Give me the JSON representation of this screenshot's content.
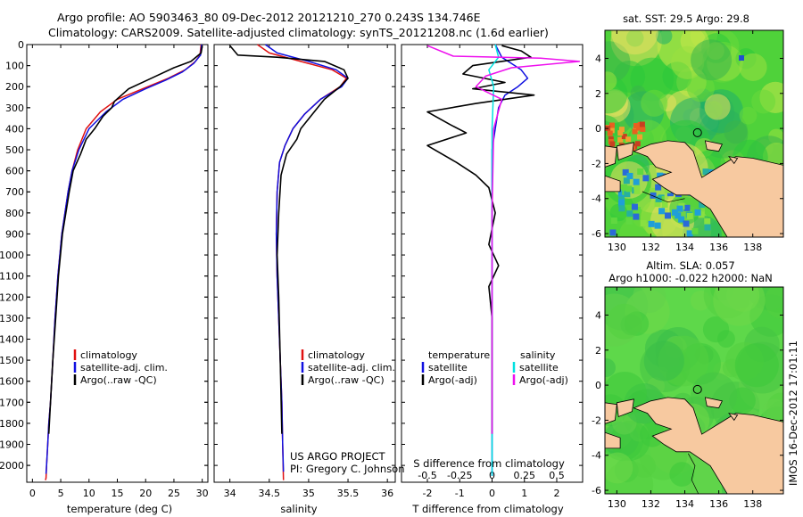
{
  "header": {
    "title_line1": "Argo profile: AO 5903463_80 09-Dec-2012 20121210_270 0.243S 134.746E",
    "title_line2": "Climatology: CARS2009. Satellite-adjusted climatology: synTS_20121208.nc (1.6d earlier)"
  },
  "colors": {
    "climatology": "#e01010",
    "satellite": "#1010e0",
    "argo": "#000000",
    "sal_sat": "#00e0e0",
    "sal_argo": "#ee10ee",
    "land": "#f7c9a0",
    "ocean_green": "#3bd43b"
  },
  "chart_data": [
    {
      "type": "line",
      "panel": "temperature",
      "xlabel": "temperature (deg C)",
      "ylabel": "",
      "xlim": [
        -1,
        31
      ],
      "ylim": [
        2080,
        0
      ],
      "xticks": [
        0,
        5,
        10,
        15,
        20,
        25,
        30
      ],
      "yticks": [
        0,
        100,
        200,
        300,
        400,
        500,
        600,
        700,
        800,
        900,
        1000,
        1100,
        1200,
        1300,
        1400,
        1500,
        1600,
        1700,
        1800,
        1900,
        2000
      ],
      "legend": [
        "climatology",
        "satellite-adj. clim.",
        "Argo(..raw -QC)"
      ],
      "series": [
        {
          "name": "climatology",
          "color": "#e01010",
          "x": [
            29.8,
            29.6,
            28.8,
            27,
            24,
            19.5,
            15,
            12,
            9.5,
            8,
            7,
            6.3,
            5.2,
            4.5,
            4,
            3.6,
            3.2,
            2.9,
            2.7,
            2.5,
            2.4,
            2.3
          ],
          "y": [
            0,
            50,
            80,
            120,
            160,
            210,
            260,
            320,
            400,
            500,
            600,
            700,
            900,
            1100,
            1300,
            1500,
            1700,
            1800,
            1900,
            2000,
            2060,
            2070
          ]
        },
        {
          "name": "satellite-adj. clim.",
          "color": "#1010e0",
          "x": [
            29.9,
            29.7,
            28.5,
            26.5,
            23.5,
            20,
            16,
            13,
            10,
            8.2,
            7,
            6.3,
            5.2,
            4.5,
            4,
            3.6,
            3.2,
            2.9,
            2.7,
            2.5,
            2.4
          ],
          "y": [
            0,
            50,
            90,
            130,
            170,
            210,
            260,
            320,
            400,
            500,
            600,
            700,
            900,
            1100,
            1300,
            1500,
            1700,
            1800,
            1900,
            2000,
            2040
          ]
        },
        {
          "name": "Argo(..raw -QC)",
          "color": "#000000",
          "x": [
            30,
            29.8,
            28,
            25,
            21,
            17,
            14.5,
            14,
            12.5,
            11,
            9.5,
            8.5,
            7.2,
            6.5,
            5.3,
            4.6,
            4.1,
            3.6,
            3.2,
            2.9
          ],
          "y": [
            5,
            40,
            80,
            110,
            160,
            210,
            270,
            300,
            340,
            400,
            450,
            520,
            600,
            700,
            900,
            1100,
            1300,
            1500,
            1700,
            1850
          ]
        }
      ]
    },
    {
      "type": "line",
      "panel": "salinity",
      "xlabel": "salinity",
      "xlim": [
        33.8,
        36.1
      ],
      "ylim": [
        2080,
        0
      ],
      "xticks": [
        34,
        34.5,
        35,
        35.5,
        36
      ],
      "xticklabels": [
        "34",
        "34.5",
        "35",
        "35.5",
        "36"
      ],
      "legend": [
        "climatology",
        "satellite-adj. clim.",
        "Argo(..raw -QC)"
      ],
      "annotation": [
        "US ARGO PROJECT",
        "PI: Gregory C. Johnson"
      ],
      "series": [
        {
          "name": "climatology",
          "color": "#e01010",
          "x": [
            34.35,
            34.5,
            34.9,
            35.3,
            35.48,
            35.4,
            35.15,
            34.95,
            34.8,
            34.7,
            34.63,
            34.6,
            34.59,
            34.6,
            34.62,
            34.64,
            34.66,
            34.67,
            34.68
          ],
          "y": [
            0,
            40,
            80,
            120,
            160,
            200,
            260,
            330,
            400,
            480,
            560,
            700,
            900,
            1100,
            1300,
            1500,
            1700,
            1900,
            2070
          ]
        },
        {
          "name": "satellite-adj. clim.",
          "color": "#1010e0",
          "x": [
            34.45,
            34.6,
            35.0,
            35.35,
            35.5,
            35.42,
            35.15,
            34.95,
            34.8,
            34.7,
            34.63,
            34.6,
            34.59,
            34.6,
            34.62,
            34.64,
            34.66,
            34.67,
            34.68
          ],
          "y": [
            0,
            40,
            80,
            120,
            160,
            200,
            260,
            330,
            400,
            480,
            560,
            700,
            900,
            1100,
            1300,
            1500,
            1700,
            1900,
            2030
          ]
        },
        {
          "name": "Argo(..raw -QC)",
          "color": "#000000",
          "x": [
            34.0,
            34.1,
            34.6,
            35.2,
            35.45,
            35.5,
            35.4,
            35.2,
            35.05,
            34.9,
            34.85,
            34.72,
            34.65,
            34.62,
            34.6,
            34.62,
            34.64,
            34.66
          ],
          "y": [
            5,
            50,
            60,
            80,
            120,
            160,
            200,
            260,
            330,
            400,
            450,
            520,
            620,
            800,
            1000,
            1200,
            1500,
            1850
          ]
        }
      ]
    },
    {
      "type": "line",
      "panel": "differences",
      "xlabel": "T difference from climatology",
      "xlabel_top": "S difference from climatology",
      "xlim": [
        -2.8,
        2.8
      ],
      "ylim": [
        2080,
        0
      ],
      "xticks": [
        -2,
        -1,
        0,
        1,
        2
      ],
      "s_xticks": [
        -0.5,
        -0.25,
        0,
        0.25,
        0.5
      ],
      "s_xticklabels": [
        "-0.5",
        "-0.25",
        "0",
        "0.25",
        "0.5"
      ],
      "legend_titles": [
        "temperature",
        "salinity"
      ],
      "legend": [
        "satellite",
        "Argo(-adj)",
        "satellite",
        "Argo(-adj)"
      ],
      "series": [
        {
          "name": "temperature satellite",
          "color": "#1010e0",
          "x": [
            0.1,
            0.3,
            0.6,
            0.9,
            1.1,
            0.8,
            0.4,
            0.2,
            0.1,
            0,
            0,
            0,
            0,
            0,
            0
          ],
          "y": [
            0,
            60,
            90,
            120,
            160,
            200,
            240,
            300,
            400,
            500,
            700,
            1000,
            1400,
            1800,
            2050
          ]
        },
        {
          "name": "temperature Argo(-adj)",
          "color": "#000000",
          "x": [
            0.3,
            0.9,
            1.2,
            -0.6,
            -0.9,
            0.4,
            -0.6,
            1.3,
            -0.5,
            -2.0,
            -1.3,
            -0.8,
            -2.0,
            -1.1,
            -0.5,
            -0.1,
            0.1,
            -0.1,
            0.2,
            -0.1,
            0,
            0,
            0
          ],
          "y": [
            5,
            30,
            60,
            100,
            140,
            180,
            210,
            240,
            280,
            320,
            380,
            420,
            480,
            560,
            620,
            680,
            800,
            950,
            1050,
            1150,
            1300,
            1600,
            1850
          ]
        },
        {
          "name": "salinity satellite",
          "color": "#00e0e0",
          "x": [
            0.1,
            0.2,
            -0.1,
            0.05,
            0,
            0,
            0,
            0
          ],
          "y": [
            0,
            60,
            120,
            200,
            400,
            800,
            1400,
            2050
          ]
        },
        {
          "name": "salinity Argo(-adj)",
          "color": "#ee10ee",
          "x": [
            -2.0,
            -1.2,
            1.5,
            2.7,
            0.6,
            -0.2,
            -0.5,
            0.3,
            0.05,
            0,
            0
          ],
          "y": [
            5,
            55,
            65,
            80,
            110,
            150,
            200,
            260,
            400,
            800,
            1850
          ]
        }
      ]
    },
    {
      "type": "heatmap",
      "panel": "sst_map",
      "title": "sat. SST: 29.5 Argo: 29.8",
      "xticks": [
        130,
        132,
        134,
        136,
        138
      ],
      "yticks": [
        4,
        2,
        0,
        -2,
        -4,
        -6
      ],
      "xlim": [
        129.3,
        139.8
      ],
      "ylim": [
        -6.2,
        5.6
      ],
      "argo_position": [
        134.746,
        -0.243
      ]
    },
    {
      "type": "heatmap",
      "panel": "sla_map",
      "title_line1": "Altim. SLA: 0.057",
      "title_line2": "Argo h1000: -0.022 h2000: NaN",
      "xticks": [
        130,
        132,
        134,
        136,
        138
      ],
      "yticks": [
        4,
        2,
        0,
        -2,
        -4,
        -6
      ],
      "xlim": [
        129.3,
        139.8
      ],
      "ylim": [
        -6.2,
        5.6
      ],
      "argo_position": [
        134.746,
        -0.243
      ]
    }
  ],
  "side_stamp": "IMOS 16-Dec-2012 17:01:11"
}
